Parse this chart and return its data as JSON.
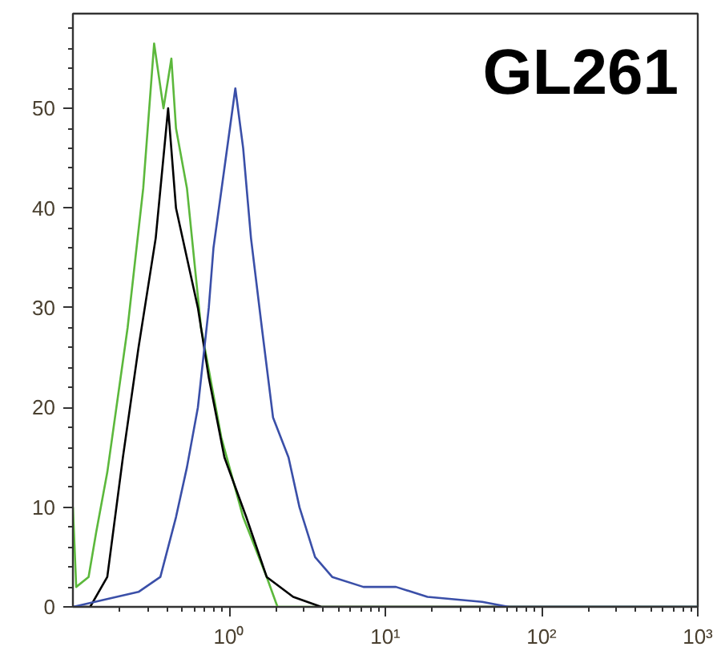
{
  "chart_data": {
    "type": "line",
    "annotations": [
      "GL261"
    ],
    "log": "x",
    "xlim": [
      0.1,
      1000
    ],
    "xticks": [
      {
        "value": 1,
        "label": "10⁰"
      },
      {
        "value": 10,
        "label": "10¹"
      },
      {
        "value": 100,
        "label": "10²"
      },
      {
        "value": 1000,
        "label": "10³"
      }
    ],
    "ylim": [
      0,
      59.5
    ],
    "yticks": [
      0,
      10,
      20,
      30,
      40,
      50
    ],
    "grid": false,
    "marker": "none",
    "line_style": "solid",
    "series": [
      {
        "color": "#5cb83c",
        "x": [
          0.1,
          0.105,
          0.126,
          0.141,
          0.166,
          0.224,
          0.282,
          0.331,
          0.38,
          0.427,
          0.457,
          0.537,
          0.661,
          0.891,
          1.23,
          1.74,
          2.04,
          1000
        ],
        "values": [
          10,
          2,
          3,
          7.5,
          13.5,
          28,
          42,
          56.5,
          50,
          55,
          48,
          42,
          28,
          17,
          9,
          3,
          0,
          0
        ]
      },
      {
        "color": "#000000",
        "x": [
          0.1,
          0.129,
          0.166,
          0.209,
          0.263,
          0.339,
          0.407,
          0.457,
          0.537,
          0.631,
          0.741,
          0.933,
          1.288,
          1.74,
          2.57,
          3.89,
          1000
        ],
        "values": [
          0,
          0,
          3,
          15,
          26,
          37,
          50,
          40,
          35,
          30,
          23,
          15,
          9,
          3,
          1,
          0,
          0
        ]
      },
      {
        "color": "#3a4fa8",
        "x": [
          0.1,
          0.263,
          0.363,
          0.457,
          0.537,
          0.631,
          0.741,
          0.794,
          0.933,
          1.096,
          1.23,
          1.38,
          1.62,
          1.91,
          2.4,
          2.82,
          3.55,
          4.57,
          7.24,
          11.7,
          18.6,
          41.7,
          61.7,
          1000
        ],
        "values": [
          0,
          1.5,
          3,
          9,
          14,
          20,
          30,
          36,
          44,
          52,
          46,
          37,
          28,
          19,
          15,
          10,
          5,
          3,
          2,
          2,
          1,
          0.5,
          0,
          0
        ]
      }
    ]
  }
}
